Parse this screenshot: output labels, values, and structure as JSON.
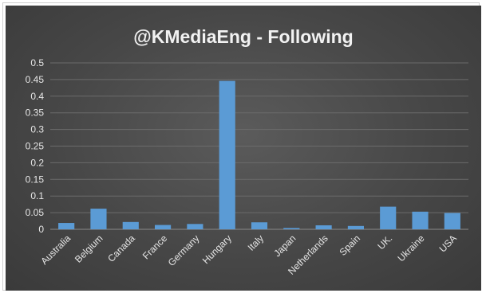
{
  "chart_data": {
    "type": "bar",
    "title": "@KMediaEng - Following",
    "categories": [
      "Australia",
      "Belgium",
      "Canada",
      "France",
      "Germany",
      "Hungary",
      "Italy",
      "Japan",
      "Netherlands",
      "Spain",
      "UK.",
      "Ukraine",
      "USA"
    ],
    "values": [
      0.019,
      0.062,
      0.022,
      0.013,
      0.016,
      0.446,
      0.021,
      0.004,
      0.012,
      0.01,
      0.068,
      0.053,
      0.049
    ],
    "y_ticks": [
      "0",
      "0.05",
      "0.1",
      "0.15",
      "0.2",
      "0.25",
      "0.3",
      "0.35",
      "0.4",
      "0.45",
      "0.5"
    ],
    "ylim": [
      0,
      0.5
    ],
    "grid": true,
    "legend": "none",
    "bar_color": "#5b9bd5",
    "background_color": "#474747"
  }
}
